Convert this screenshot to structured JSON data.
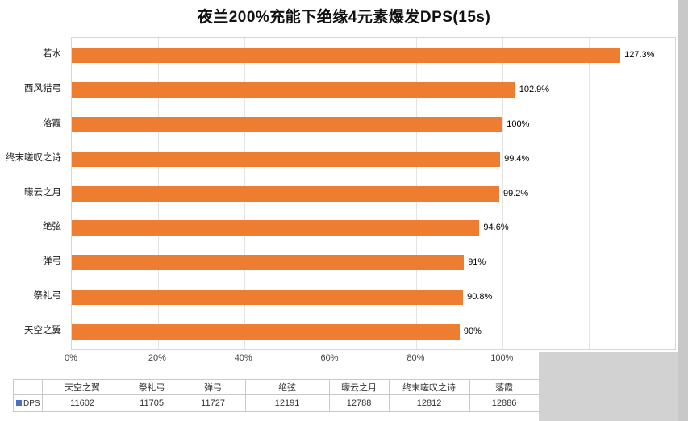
{
  "title": "夜兰200%充能下绝缘4元素爆发DPS(15s)",
  "chart_data": {
    "type": "bar",
    "orientation": "horizontal",
    "title": "夜兰200%充能下绝缘4元素爆发DPS(15s)",
    "categories": [
      "若水",
      "西风猎弓",
      "落霞",
      "终末嗟叹之诗",
      "曚云之月",
      "绝弦",
      "弹弓",
      "祭礼弓",
      "天空之翼"
    ],
    "values": [
      127.3,
      102.9,
      100,
      99.4,
      99.2,
      94.6,
      91,
      90.8,
      90
    ],
    "value_labels": [
      "127.3%",
      "102.9%",
      "100%",
      "99.4%",
      "99.2%",
      "94.6%",
      "91%",
      "90.8%",
      "90%"
    ],
    "xlim": [
      0,
      140
    ],
    "x_ticks": [
      {
        "value": 0,
        "label": "0%"
      },
      {
        "value": 20,
        "label": "20%"
      },
      {
        "value": 40,
        "label": "40%"
      },
      {
        "value": 60,
        "label": "60%"
      },
      {
        "value": 80,
        "label": "80%"
      },
      {
        "value": 100,
        "label": "100%"
      },
      {
        "value": 120,
        "label": ""
      },
      {
        "value": 140,
        "label": ""
      }
    ],
    "bar_color": "#ED7D31",
    "grid": true,
    "legend_position": "bottom-left",
    "series_name": "DPS"
  },
  "table": {
    "legend_label": "DPS",
    "legend_color": "#4472C4",
    "columns": [
      "天空之翼",
      "祭礼弓",
      "弹弓",
      "绝弦",
      "曚云之月",
      "终末嗟叹之诗",
      "落霞"
    ],
    "row_name": "DPS",
    "values": [
      "11602",
      "11705",
      "11727",
      "12191",
      "12788",
      "12812",
      "12886"
    ]
  }
}
